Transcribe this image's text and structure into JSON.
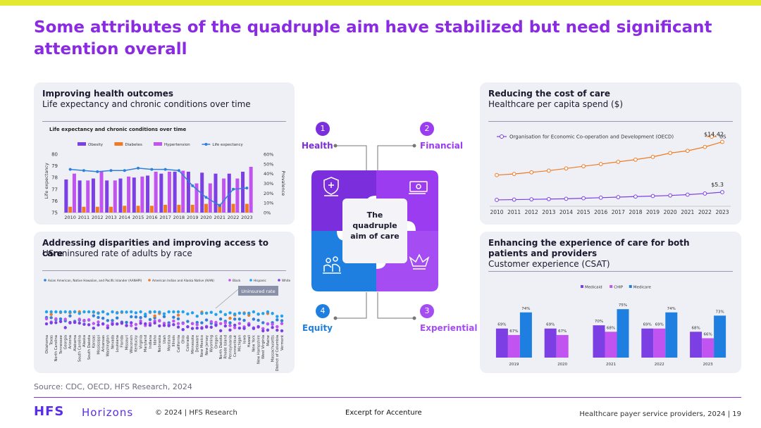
{
  "title": "Some attributes of the quadruple aim have stabilized but need significant attention overall",
  "panels": {
    "health": {
      "title": "Improving health outcomes",
      "subtitle": "Life expectancy and chronic conditions over time"
    },
    "access": {
      "title": "Addressing disparities and improving access to care",
      "subtitle": "US uninsured rate of adults by race"
    },
    "cost": {
      "title": "Reducing the cost of care",
      "subtitle": "Healthcare per capita spend ($)"
    },
    "experience": {
      "title": "Enhancing the experience of care for both patients and providers",
      "subtitle": "Customer experience (CSAT)"
    }
  },
  "aim": {
    "center": "The quadruple aim of care",
    "items": [
      {
        "num": "1",
        "label": "Health"
      },
      {
        "num": "2",
        "label": "Financial"
      },
      {
        "num": "3",
        "label": "Experiential"
      },
      {
        "num": "4",
        "label": "Equity"
      }
    ]
  },
  "colors": {
    "accent": "#8a2be2",
    "health": "#7b2fdc",
    "financial": "#9b3cf0",
    "equity": "#1f7fe0",
    "experiential": "#a54cf2"
  },
  "chart_data": [
    {
      "type": "bar",
      "title": "Life expectancy and chronic conditions over time",
      "categories": [
        "2010",
        "2011",
        "2012",
        "2013",
        "2014",
        "2015",
        "2016",
        "2017",
        "2018",
        "2019",
        "2020",
        "2021",
        "2022",
        "2023"
      ],
      "series": [
        {
          "name": "Obesity",
          "color": "#7b3fe4",
          "axis": "right",
          "values": [
            34,
            33,
            35,
            33,
            35,
            36,
            38,
            40,
            42,
            42,
            41,
            40,
            40,
            42
          ]
        },
        {
          "name": "Diabetes",
          "color": "#f07a22",
          "axis": "right",
          "values": [
            6,
            6,
            6,
            6,
            7,
            7,
            7,
            8,
            8,
            8,
            9,
            9,
            9,
            9
          ]
        },
        {
          "name": "Hypertension",
          "color": "#c154f0",
          "axis": "right",
          "values": [
            40,
            33,
            42,
            33,
            37,
            37,
            42,
            42,
            43,
            30,
            30,
            35,
            35,
            47
          ]
        },
        {
          "name": "Life expectancy",
          "color": "#2f80d8",
          "type": "line",
          "axis": "left",
          "values": [
            78.7,
            78.6,
            78.5,
            78.6,
            78.6,
            78.8,
            78.7,
            78.7,
            78.6,
            77.3,
            76.3,
            75.6,
            77.0,
            77.1
          ]
        }
      ],
      "ylabel": "Life expectancy",
      "y2label": "Prevalence",
      "ylim": [
        75,
        80
      ],
      "yticks": [
        "80",
        "79",
        "78",
        "77",
        "76",
        "75"
      ],
      "y2lim": [
        0,
        60
      ],
      "y2ticks": [
        "60%",
        "50%",
        "40%",
        "30%",
        "20%",
        "10%",
        "0%"
      ],
      "legend": "top"
    },
    {
      "type": "scatter",
      "legend_labels": [
        "Asian American, Native Hawaiian, and Pacific Islander (AANHPI)",
        "American Indian and Alaska Native (AIAN)",
        "Black",
        "Hispanic",
        "White"
      ],
      "legend_colors": [
        "#2f80d8",
        "#f07a22",
        "#c154f0",
        "#1fa2f0",
        "#7b3fe4"
      ],
      "categories": [
        "Oklahoma",
        "Texas",
        "North Carolina",
        "Tennessee",
        "Georgia",
        "Arizona",
        "Alabama",
        "South Carolina",
        "Alaska",
        "South Dakota",
        "Kansas",
        "Mississippi",
        "Arkansas",
        "Washington",
        "Nevada",
        "Louisiana",
        "Florida",
        "Missouri",
        "Wisconsin",
        "Kentucky",
        "Virginia",
        "Maryland",
        "Indiana",
        "Idaho",
        "Nebraska",
        "Utah",
        "Montana",
        "Illinois",
        "California",
        "Ohio",
        "Colorado",
        "Minnesota",
        "Delaware",
        "New Mexico",
        "New Jersey",
        "Wyoming",
        "Oregon",
        "North Dakota",
        "Rhode Island",
        "Pennsylvania",
        "Connecticut",
        "Michigan",
        "Iowa",
        "Hawaii",
        "New York",
        "New Hampshire",
        "West Virginia",
        "Maine",
        "Massachusetts",
        "District of Columbia",
        "Vermont"
      ],
      "annotation": "Uninsured rate"
    },
    {
      "type": "line",
      "categories": [
        "2010",
        "2011",
        "2012",
        "2013",
        "2014",
        "2015",
        "2016",
        "2017",
        "2018",
        "2019",
        "2020",
        "2021",
        "2022",
        "2023"
      ],
      "series": [
        {
          "name": "Organisation for Economic Co-operation and Development (OECD)",
          "color": "#7b3fe4",
          "values": [
            3.9,
            3.95,
            4.0,
            4.05,
            4.1,
            4.2,
            4.3,
            4.4,
            4.5,
            4.6,
            4.7,
            4.85,
            5.05,
            5.3
          ]
        },
        {
          "name": "US",
          "color": "#f07a22",
          "values": [
            8.4,
            8.6,
            8.9,
            9.2,
            9.6,
            10.0,
            10.4,
            10.8,
            11.2,
            11.7,
            12.4,
            12.8,
            13.5,
            14.42
          ]
        }
      ],
      "data_labels": [
        "$14.42",
        "$5.3"
      ],
      "ylim": [
        3,
        15
      ],
      "legend": "top"
    },
    {
      "type": "bar",
      "categories": [
        "2019",
        "2020",
        "2021",
        "2022",
        "2023"
      ],
      "series": [
        {
          "name": "Medicaid",
          "color": "#7b3fe4",
          "values": [
            69,
            69,
            70,
            69,
            68
          ],
          "labels": [
            "69%",
            "69%",
            "70%",
            "69%",
            "68%"
          ]
        },
        {
          "name": "CHIP",
          "color": "#c154f0",
          "values": [
            67,
            67,
            68,
            69,
            66
          ],
          "labels": [
            "67%",
            "67%",
            "68%",
            "69%",
            "66%"
          ]
        },
        {
          "name": "Medicare",
          "color": "#1f7fe0",
          "values": [
            74,
            null,
            75,
            74,
            73
          ],
          "labels": [
            "74%",
            "",
            "75%",
            "74%",
            "73%"
          ]
        }
      ],
      "ylim": [
        60,
        77
      ],
      "legend": "top"
    }
  ],
  "source": "Source: CDC, OECD, HFS Research, 2024",
  "footer": {
    "logo_main": "HFS",
    "logo_sub": "Horizons",
    "copyright": "© 2024 | HFS Research",
    "excerpt": "Excerpt for Accenture",
    "right": "Healthcare payer service providers, 2024 | 19"
  }
}
